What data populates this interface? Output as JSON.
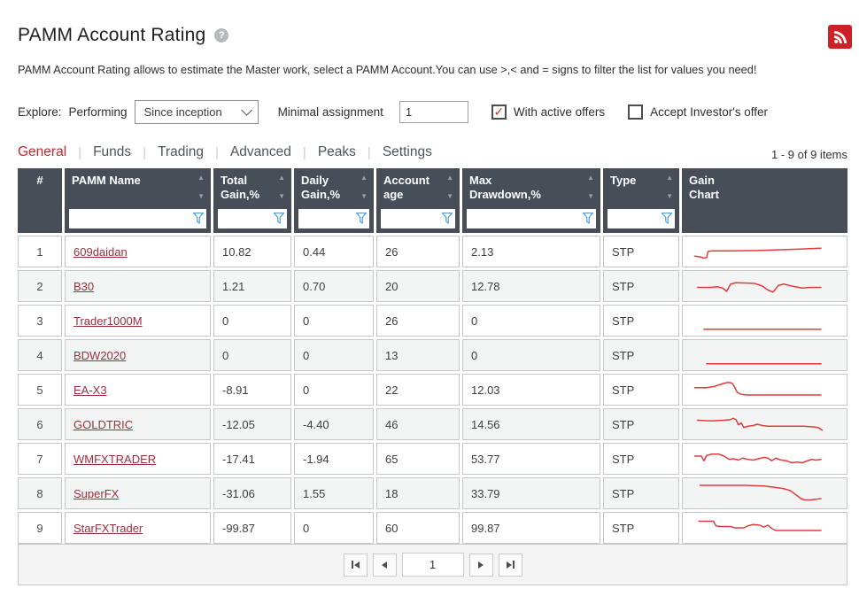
{
  "page": {
    "title": "PAMM Account Rating",
    "help_icon": "?",
    "description": "PAMM Account Rating allows to estimate the Master work, select a PAMM Account.You can use >,< and = signs to filter the list for values you need!",
    "items_count_label": "1 - 9 of 9 items"
  },
  "icons": {
    "rss_icon": "rss-feed",
    "help_icon": "question-mark",
    "filter_icon": "funnel",
    "sort_up_icon": "▲",
    "sort_down_icon": "▼",
    "checkmark": "✓"
  },
  "colors": {
    "accent_red": "#c2262e",
    "link_red": "#9c2d3b",
    "sparkline_red": "#e23b3e",
    "header_bg": "#474e58",
    "filter_blue": "#4f9fd8",
    "rss_bg": "#ce2127",
    "row_alt_bg": "#f3f5f4",
    "border_gray": "#c4c6c8"
  },
  "filters": {
    "explore_label": "Explore:",
    "performing_label": "Performing",
    "period_select_value": "Since inception",
    "minimal_assignment_label": "Minimal assignment",
    "minimal_assignment_value": "1",
    "with_active_offers": {
      "label": "With active offers",
      "checked": true
    },
    "accept_investors_offer": {
      "label": "Accept Investor's offer",
      "checked": false
    }
  },
  "tabs": [
    {
      "label": "General",
      "active": true
    },
    {
      "label": "Funds",
      "active": false
    },
    {
      "label": "Trading",
      "active": false
    },
    {
      "label": "Advanced",
      "active": false
    },
    {
      "label": "Peaks",
      "active": false
    },
    {
      "label": "Settings",
      "active": false
    }
  ],
  "table": {
    "columns": [
      {
        "key": "index",
        "label": "#",
        "two_line": false,
        "sortable": false,
        "filterable": false
      },
      {
        "key": "name",
        "label": "PAMM Name",
        "two_line": false,
        "sortable": true,
        "filterable": true
      },
      {
        "key": "total_gain",
        "label": "Total Gain,%",
        "two_line": true,
        "sortable": true,
        "filterable": true
      },
      {
        "key": "daily_gain",
        "label": "Daily Gain,%",
        "two_line": true,
        "sortable": true,
        "filterable": true
      },
      {
        "key": "account_age",
        "label": "Account age",
        "two_line": true,
        "sortable": true,
        "filterable": true
      },
      {
        "key": "max_drawdown",
        "label": "Max Drawdown,%",
        "two_line": true,
        "sortable": true,
        "filterable": true
      },
      {
        "key": "type",
        "label": "Type",
        "two_line": false,
        "sortable": true,
        "filterable": true
      },
      {
        "key": "chart",
        "label": "Gain Chart",
        "two_line": true,
        "sortable": false,
        "filterable": false
      }
    ],
    "filter_values": [
      "",
      "",
      "",
      "",
      "",
      ""
    ],
    "rows": [
      {
        "index": "1",
        "name": "609daidan",
        "total_gain": "10.82",
        "daily_gain": "0.44",
        "account_age": "26",
        "max_drawdown": "2.13",
        "type": "STP",
        "sparkline": [
          [
            3,
            27
          ],
          [
            7,
            28
          ],
          [
            10,
            30
          ],
          [
            12,
            29
          ],
          [
            13,
            20
          ],
          [
            16,
            19
          ],
          [
            30,
            19
          ],
          [
            50,
            18.5
          ],
          [
            65,
            17.5
          ],
          [
            80,
            16.5
          ],
          [
            98,
            15
          ]
        ]
      },
      {
        "index": "2",
        "name": "B30",
        "total_gain": "1.21",
        "daily_gain": "0.70",
        "account_age": "20",
        "max_drawdown": "12.78",
        "type": "STP",
        "sparkline": [
          [
            5,
            22
          ],
          [
            15,
            22
          ],
          [
            20,
            21
          ],
          [
            24,
            23
          ],
          [
            27,
            28
          ],
          [
            30,
            17
          ],
          [
            34,
            15
          ],
          [
            42,
            15.5
          ],
          [
            48,
            16
          ],
          [
            54,
            20
          ],
          [
            58,
            26
          ],
          [
            62,
            29
          ],
          [
            66,
            19
          ],
          [
            70,
            17
          ],
          [
            76,
            20
          ],
          [
            84,
            23
          ],
          [
            90,
            22
          ],
          [
            98,
            22
          ]
        ]
      },
      {
        "index": "3",
        "name": "Trader1000M",
        "total_gain": "0",
        "daily_gain": "0",
        "account_age": "26",
        "max_drawdown": "0",
        "type": "STP",
        "sparkline": [
          [
            10,
            33
          ],
          [
            98,
            33
          ]
        ]
      },
      {
        "index": "4",
        "name": "BDW2020",
        "total_gain": "0",
        "daily_gain": "0",
        "account_age": "13",
        "max_drawdown": "0",
        "type": "STP",
        "sparkline": [
          [
            12,
            33
          ],
          [
            98,
            33
          ]
        ]
      },
      {
        "index": "5",
        "name": "EA-X3",
        "total_gain": "-8.91",
        "daily_gain": "0",
        "account_age": "22",
        "max_drawdown": "12.03",
        "type": "STP",
        "sparkline": [
          [
            3,
            17
          ],
          [
            12,
            17
          ],
          [
            18,
            15
          ],
          [
            24,
            11
          ],
          [
            28,
            9
          ],
          [
            31,
            10
          ],
          [
            33,
            16
          ],
          [
            35,
            24
          ],
          [
            38,
            27
          ],
          [
            42,
            28
          ],
          [
            98,
            28
          ]
        ]
      },
      {
        "index": "6",
        "name": "GOLDTRIC",
        "total_gain": "-12.05",
        "daily_gain": "-4.40",
        "account_age": "46",
        "max_drawdown": "14.56",
        "type": "STP",
        "sparkline": [
          [
            5,
            14
          ],
          [
            15,
            15
          ],
          [
            25,
            14
          ],
          [
            30,
            13
          ],
          [
            32,
            11
          ],
          [
            34,
            13
          ],
          [
            36,
            21
          ],
          [
            38,
            18
          ],
          [
            40,
            25
          ],
          [
            43,
            23
          ],
          [
            47,
            22
          ],
          [
            50,
            20
          ],
          [
            54,
            22
          ],
          [
            58,
            23
          ],
          [
            65,
            23
          ],
          [
            75,
            23
          ],
          [
            85,
            23
          ],
          [
            92,
            24
          ],
          [
            96,
            25
          ],
          [
            99,
            29
          ]
        ]
      },
      {
        "index": "7",
        "name": "WMFXTRADER",
        "total_gain": "-17.41",
        "daily_gain": "-1.94",
        "account_age": "65",
        "max_drawdown": "53.77",
        "type": "STP",
        "sparkline": [
          [
            3,
            16
          ],
          [
            8,
            16
          ],
          [
            10,
            23
          ],
          [
            12,
            15
          ],
          [
            16,
            13
          ],
          [
            21,
            13
          ],
          [
            25,
            16
          ],
          [
            29,
            21
          ],
          [
            32,
            20
          ],
          [
            36,
            22
          ],
          [
            39,
            19
          ],
          [
            43,
            21
          ],
          [
            47,
            22
          ],
          [
            51,
            20
          ],
          [
            55,
            18
          ],
          [
            58,
            19
          ],
          [
            61,
            23
          ],
          [
            64,
            19
          ],
          [
            68,
            22
          ],
          [
            72,
            23
          ],
          [
            76,
            26
          ],
          [
            80,
            25
          ],
          [
            84,
            26
          ],
          [
            88,
            23
          ],
          [
            91,
            21
          ],
          [
            94,
            22
          ],
          [
            98,
            21
          ]
        ]
      },
      {
        "index": "8",
        "name": "SuperFX",
        "total_gain": "-31.06",
        "daily_gain": "1.55",
        "account_age": "18",
        "max_drawdown": "33.79",
        "type": "STP",
        "sparkline": [
          [
            7,
            8
          ],
          [
            40,
            8
          ],
          [
            55,
            9
          ],
          [
            63,
            11
          ],
          [
            70,
            13
          ],
          [
            75,
            16
          ],
          [
            79,
            22
          ],
          [
            83,
            28
          ],
          [
            86,
            30
          ],
          [
            90,
            30
          ],
          [
            98,
            28
          ]
        ]
      },
      {
        "index": "9",
        "name": "StarFXTrader",
        "total_gain": "-99.87",
        "daily_gain": "0",
        "account_age": "60",
        "max_drawdown": "99.87",
        "type": "STP",
        "sparkline": [
          [
            6,
            10
          ],
          [
            17,
            10
          ],
          [
            19,
            17
          ],
          [
            22,
            18
          ],
          [
            30,
            18
          ],
          [
            33,
            20
          ],
          [
            40,
            20
          ],
          [
            43,
            17
          ],
          [
            47,
            15
          ],
          [
            52,
            16
          ],
          [
            55,
            19
          ],
          [
            58,
            16
          ],
          [
            61,
            21
          ],
          [
            64,
            24
          ],
          [
            70,
            24
          ],
          [
            98,
            24
          ]
        ]
      }
    ]
  },
  "pagination": {
    "page_value": "1"
  }
}
